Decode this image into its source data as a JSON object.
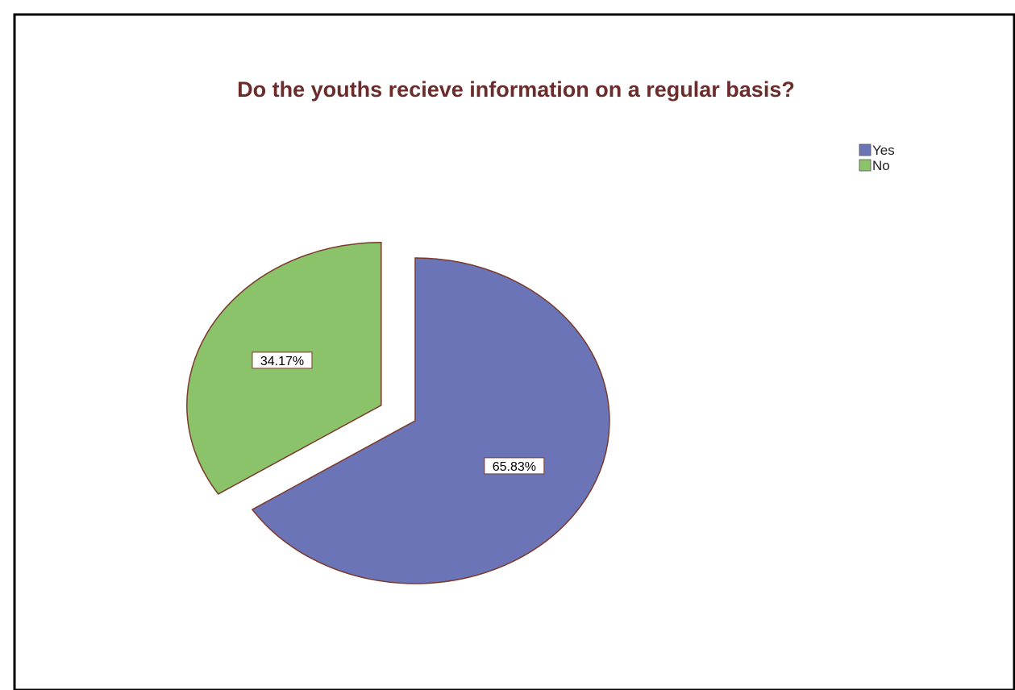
{
  "chart_data": {
    "type": "pie",
    "title": "Do the youths recieve information on a regular basis?",
    "slices": [
      {
        "label": "Yes",
        "value": 65.83,
        "data_label": "65.83%",
        "color": "#6a74b6"
      },
      {
        "label": "No",
        "value": 34.17,
        "data_label": "34.17%",
        "color": "#8bc36b",
        "exploded": true
      }
    ],
    "legend_position": "top-right",
    "title_color": "#6b2c2c",
    "slice_border_color": "#7a3a2a"
  }
}
